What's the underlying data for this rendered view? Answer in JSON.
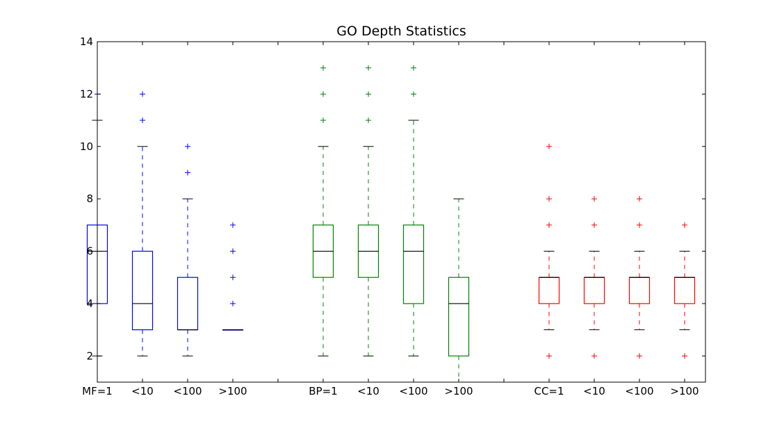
{
  "chart_data": {
    "type": "box",
    "title": "GO Depth Statistics",
    "xlabel": "",
    "ylabel": "",
    "ylim": [
      1,
      14
    ],
    "yticks": [
      2,
      4,
      6,
      8,
      10,
      12,
      14
    ],
    "grid": false,
    "legend": "none",
    "groups": [
      {
        "color": "#0000ff",
        "boxes": [
          {
            "label": "MF=1",
            "min": 2,
            "q1": 4,
            "median": 6,
            "q3": 7,
            "max": 11,
            "outliers": [
              12
            ]
          },
          {
            "label": "<10",
            "min": 2,
            "q1": 3,
            "median": 4,
            "q3": 6,
            "max": 10,
            "outliers": [
              11,
              12
            ]
          },
          {
            "label": "<100",
            "min": 2,
            "q1": 3,
            "median": 3,
            "q3": 5,
            "max": 8,
            "outliers": [
              9,
              10
            ]
          },
          {
            "label": ">100",
            "min": 3,
            "q1": 3,
            "median": 3,
            "q3": 3,
            "max": 3,
            "outliers": [
              4,
              5,
              6,
              7
            ]
          }
        ]
      },
      {
        "color": "#008000",
        "boxes": [
          {
            "label": "BP=1",
            "min": 2,
            "q1": 5,
            "median": 6,
            "q3": 7,
            "max": 10,
            "outliers": [
              11,
              12,
              13
            ]
          },
          {
            "label": "<10",
            "min": 2,
            "q1": 5,
            "median": 6,
            "q3": 7,
            "max": 10,
            "outliers": [
              11,
              12,
              13
            ]
          },
          {
            "label": "<100",
            "min": 2,
            "q1": 4,
            "median": 6,
            "q3": 7,
            "max": 11,
            "outliers": [
              12,
              13
            ]
          },
          {
            "label": ">100",
            "min": 1,
            "q1": 2,
            "median": 4,
            "q3": 5,
            "max": 8,
            "outliers": []
          }
        ]
      },
      {
        "color": "#ff0000",
        "boxes": [
          {
            "label": "CC=1",
            "min": 3,
            "q1": 4,
            "median": 5,
            "q3": 5,
            "max": 6,
            "outliers": [
              2,
              7,
              8,
              10
            ]
          },
          {
            "label": "<10",
            "min": 3,
            "q1": 4,
            "median": 5,
            "q3": 5,
            "max": 6,
            "outliers": [
              2,
              7,
              8
            ]
          },
          {
            "label": "<100",
            "min": 3,
            "q1": 4,
            "median": 5,
            "q3": 5,
            "max": 6,
            "outliers": [
              2,
              7,
              8
            ]
          },
          {
            "label": ">100",
            "min": 3,
            "q1": 4,
            "median": 5,
            "q3": 5,
            "max": 6,
            "outliers": [
              2,
              7
            ]
          }
        ]
      }
    ]
  }
}
